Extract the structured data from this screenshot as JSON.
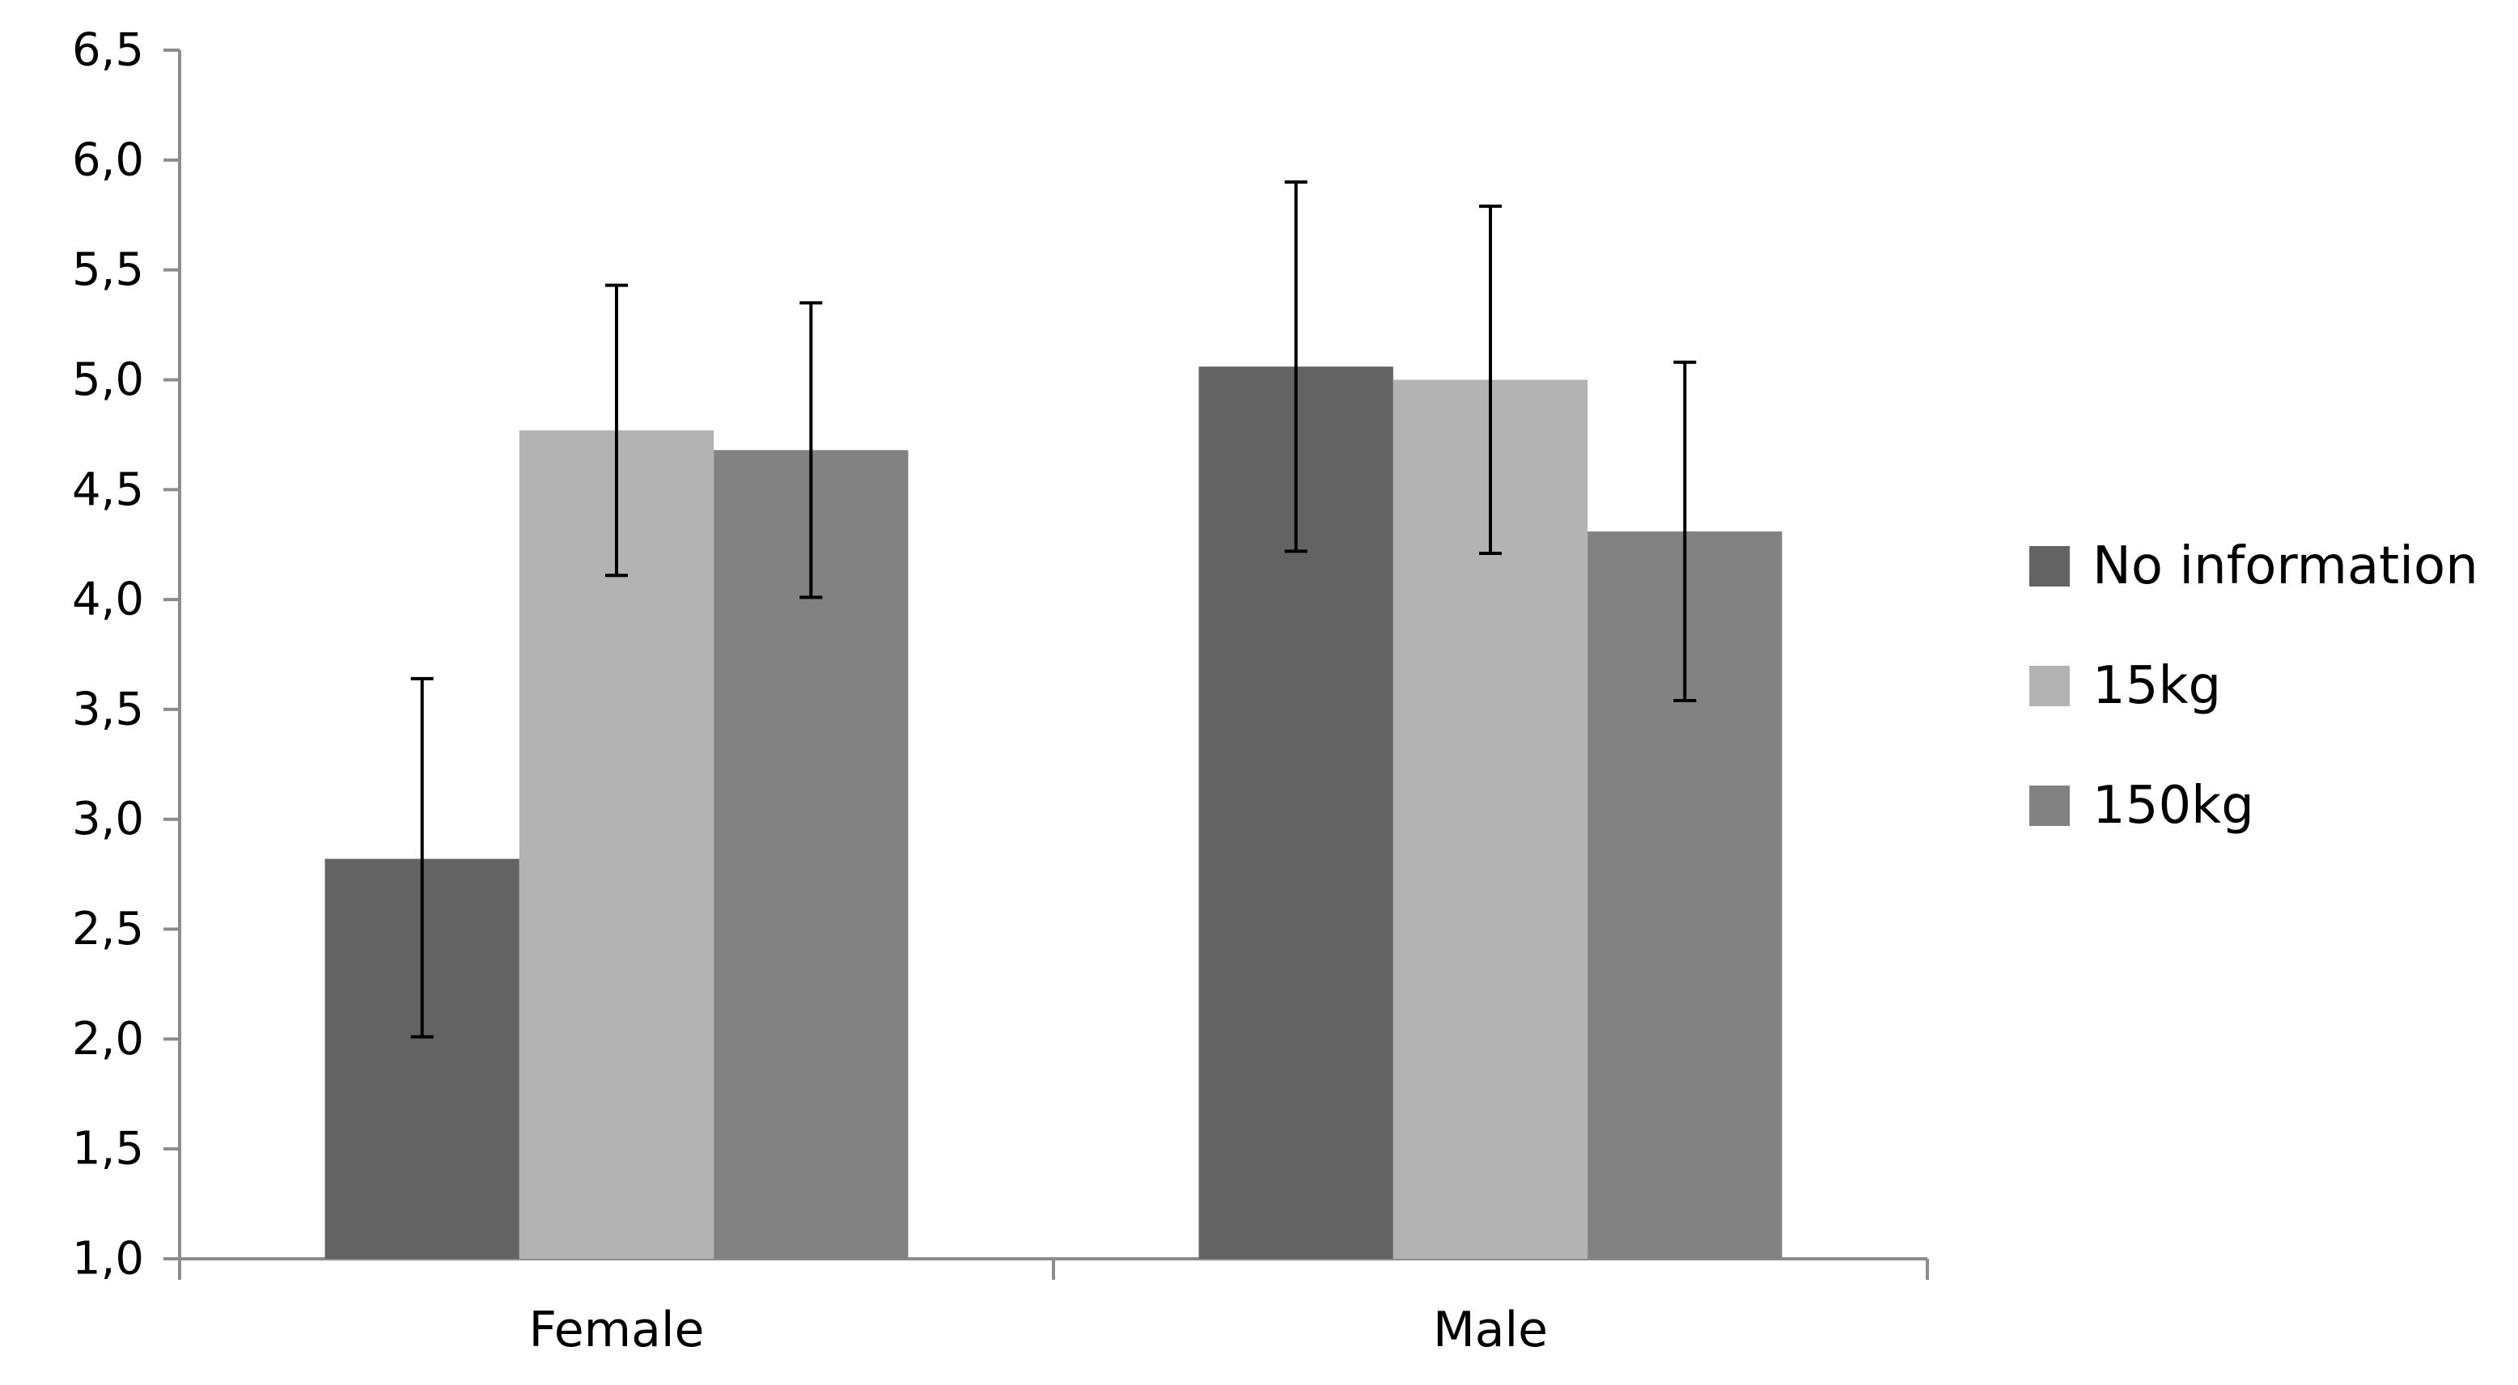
{
  "chart_data": {
    "type": "bar",
    "title": "",
    "xlabel": "",
    "ylabel": "",
    "categories": [
      "Female",
      "Male"
    ],
    "ylim": [
      1.0,
      6.5
    ],
    "ytick_values": [
      1.0,
      1.5,
      2.0,
      2.5,
      3.0,
      3.5,
      4.0,
      4.5,
      5.0,
      5.5,
      6.0,
      6.5
    ],
    "ytick_labels": [
      "1,0",
      "1,5",
      "2,0",
      "2,5",
      "3,0",
      "3,5",
      "4,0",
      "4,5",
      "5,0",
      "5,5",
      "6,0",
      "6,5"
    ],
    "grid": false,
    "legend_position": "right",
    "series": [
      {
        "name": "No information",
        "color": "#636363",
        "values": [
          2.82,
          5.06
        ],
        "error_low": [
          2.01,
          4.22
        ],
        "error_high": [
          3.64,
          5.9
        ]
      },
      {
        "name": "15kg",
        "color": "#b3b3b3",
        "values": [
          4.77,
          5.0
        ],
        "error_low": [
          4.11,
          4.21
        ],
        "error_high": [
          5.43,
          5.79
        ]
      },
      {
        "name": "150kg",
        "color": "#828282",
        "values": [
          4.68,
          4.31
        ],
        "error_low": [
          4.01,
          3.54
        ],
        "error_high": [
          5.35,
          5.08
        ]
      }
    ]
  }
}
